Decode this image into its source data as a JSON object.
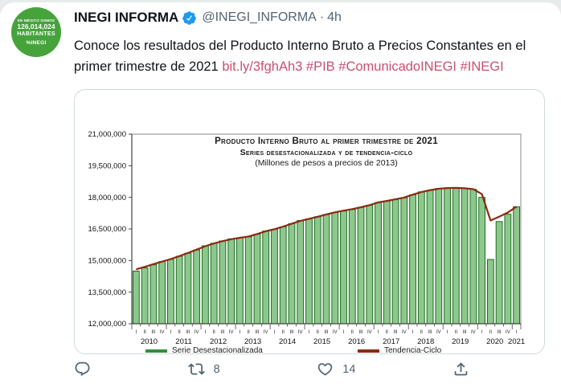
{
  "colors": {
    "accent_link_pink": "#c9506e",
    "avatar_green": "#46a33c",
    "verified_blue": "#1d9bf0",
    "bar_fill": "#8cc88c",
    "bar_border": "#1d6b21",
    "trend_line_red": "#8c2a10"
  },
  "avatar": {
    "top": "EN MÉXICO SOMOS",
    "population": "126,014,024",
    "label": "HABITANTES",
    "brand": "%INEGI"
  },
  "header": {
    "author": "INEGI INFORMA",
    "handle": "@INEGI_INFORMA",
    "dot": "·",
    "time": "4h"
  },
  "tweet": {
    "line1": "Conoce los resultados del Producto Interno Bruto a Precios Constantes en el",
    "line2_prefix": "primer trimestre de 2021 ",
    "link": "bit.ly/3fghAh3",
    "hashtag1": "#PIB",
    "hashtag2": "#ComunicadoINEGI",
    "hashtag3": "#INEGI"
  },
  "actions": {
    "retweet_count": "8",
    "like_count": "14"
  },
  "chart_data": {
    "type": "bar",
    "title_main": "Producto Interno Bruto al primer trimestre de",
    "title_year": "2021",
    "subtitle": "Series desestacionalizada y de tendencia-ciclo",
    "units_note": "(Millones de pesos a precios de 2013)",
    "ylim": [
      12000000,
      21000000
    ],
    "y_ticks": [
      "21,000,000",
      "19,500,000",
      "18,000,000",
      "16,500,000",
      "15,000,000",
      "13,500,000",
      "12,000,000"
    ],
    "grid": false,
    "legend_position": "bottom",
    "years": [
      "2010",
      "2011",
      "2012",
      "2013",
      "2014",
      "2015",
      "2016",
      "2017",
      "2018",
      "2019",
      "2020",
      "2021"
    ],
    "quarter_labels": [
      "I",
      "II",
      "III",
      "IV"
    ],
    "quarters_in_last_year": 1,
    "series": [
      {
        "name": "Serie Desestacionalizada",
        "type": "bar",
        "fill": "#8cc88c",
        "border": "#1d6b21",
        "values": [
          14500000,
          14650000,
          14800000,
          14950000,
          15050000,
          15200000,
          15350000,
          15500000,
          15700000,
          15820000,
          15930000,
          16030000,
          16080000,
          16120000,
          16250000,
          16400000,
          16480000,
          16600000,
          16750000,
          16900000,
          16980000,
          17080000,
          17180000,
          17280000,
          17350000,
          17420000,
          17520000,
          17620000,
          17750000,
          17820000,
          17900000,
          17980000,
          18120000,
          18260000,
          18330000,
          18420000,
          18450000,
          18460000,
          18430000,
          18380000,
          18000000,
          15050000,
          16850000,
          17200000,
          17550000
        ]
      },
      {
        "name": "Tendencia-Ciclo",
        "type": "line",
        "color": "#8c2a10",
        "values": [
          14580000,
          14700000,
          14830000,
          14950000,
          15070000,
          15210000,
          15360000,
          15520000,
          15680000,
          15810000,
          15920000,
          16010000,
          16080000,
          16140000,
          16260000,
          16390000,
          16490000,
          16610000,
          16750000,
          16880000,
          16980000,
          17080000,
          17190000,
          17290000,
          17370000,
          17440000,
          17530000,
          17630000,
          17760000,
          17830000,
          17910000,
          17990000,
          18130000,
          18250000,
          18340000,
          18410000,
          18440000,
          18450000,
          18430000,
          18390000,
          18150000,
          16900000,
          17080000,
          17280000,
          17560000
        ]
      }
    ]
  }
}
